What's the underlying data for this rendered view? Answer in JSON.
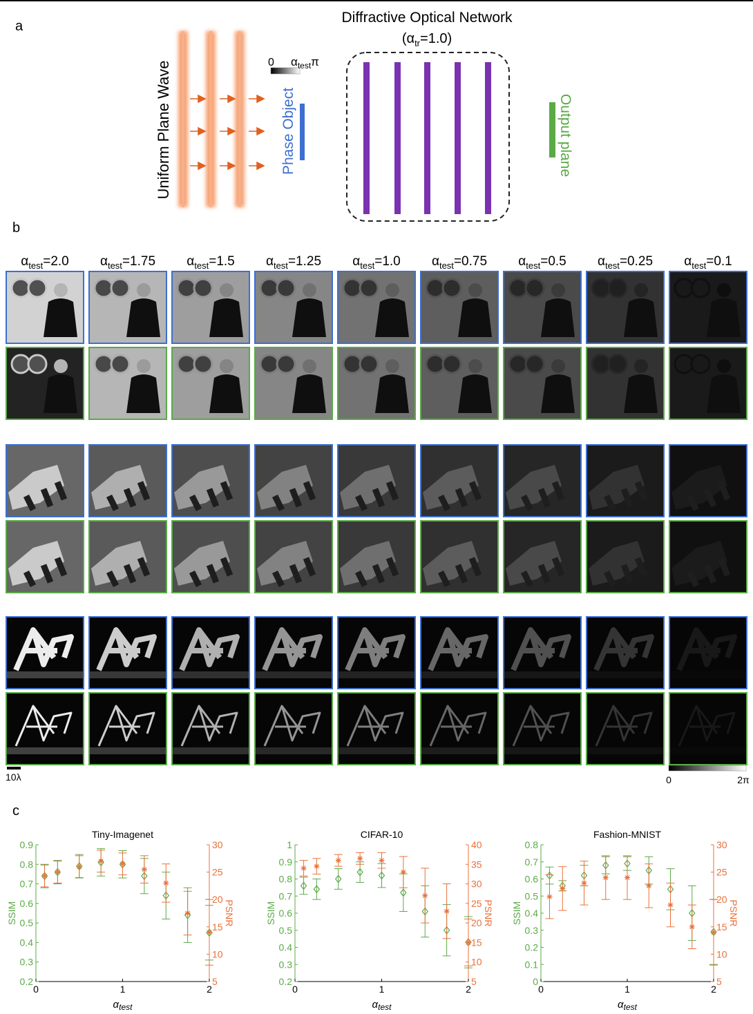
{
  "panel_a": {
    "label": "a",
    "network_title": "Diffractive Optical Network",
    "network_param": {
      "open": "(α",
      "sub": "tr",
      "rest": "=1.0)"
    },
    "wave_label": "Uniform Plane Wave",
    "object_label": "Phase Object",
    "output_label": "Output plane",
    "colorbar": {
      "low": "0",
      "high_base": "α",
      "high_sub": "test",
      "high_rest": "π"
    }
  },
  "panel_b": {
    "label": "b",
    "columns": [
      {
        "base": "α",
        "sub": "test",
        "rest": "=2.0"
      },
      {
        "base": "α",
        "sub": "test",
        "rest": "=1.75"
      },
      {
        "base": "α",
        "sub": "test",
        "rest": "=1.5"
      },
      {
        "base": "α",
        "sub": "test",
        "rest": "=1.25"
      },
      {
        "base": "α",
        "sub": "test",
        "rest": "=1.0"
      },
      {
        "base": "α",
        "sub": "test",
        "rest": "=0.75"
      },
      {
        "base": "α",
        "sub": "test",
        "rest": "=0.5"
      },
      {
        "base": "α",
        "sub": "test",
        "rest": "=0.25"
      },
      {
        "base": "α",
        "sub": "test",
        "rest": "=0.1"
      }
    ],
    "scale_bar": "10λ",
    "colorbar": {
      "low": "0",
      "high": "2π"
    }
  },
  "panel_c": {
    "label": "c"
  },
  "chart_data": [
    {
      "type": "errorbar",
      "title": "Tiny-Imagenet",
      "x_label": {
        "base": "α",
        "sub": "test"
      },
      "y_label": "SSIM",
      "y2_label": "PSNR",
      "x": [
        0.1,
        0.25,
        0.5,
        0.75,
        1,
        1.25,
        1.5,
        1.75,
        2
      ],
      "xlim": [
        0,
        2
      ],
      "xticks": [
        0,
        1,
        2
      ],
      "ylim": [
        0.2,
        0.9
      ],
      "yticks": [
        0.2,
        0.3,
        0.4,
        0.5,
        0.6,
        0.7,
        0.8,
        0.9
      ],
      "y2lim": [
        5,
        30
      ],
      "y2ticks": [
        5,
        10,
        15,
        20,
        25,
        30
      ],
      "series": [
        {
          "name": "SSIM",
          "color": "#5aaa46",
          "marker": "diamond",
          "values": [
            0.74,
            0.76,
            0.79,
            0.81,
            0.8,
            0.74,
            0.64,
            0.54,
            0.45
          ],
          "errors": [
            0.06,
            0.06,
            0.06,
            0.07,
            0.07,
            0.09,
            0.12,
            0.14,
            0.14
          ]
        },
        {
          "name": "PSNR",
          "color": "#e8703a",
          "marker": "star",
          "axis": "y2",
          "values": [
            24.3,
            25,
            26,
            27,
            26.5,
            25.5,
            23,
            17.5,
            14
          ],
          "errors": [
            2,
            2,
            2,
            2,
            2,
            2.5,
            3.5,
            4,
            6
          ]
        }
      ]
    },
    {
      "type": "errorbar",
      "title": "CIFAR-10",
      "x_label": {
        "base": "α",
        "sub": "test"
      },
      "y_label": "SSIM",
      "y2_label": "PSNR",
      "x": [
        0.1,
        0.25,
        0.5,
        0.75,
        1,
        1.25,
        1.5,
        1.75,
        2
      ],
      "xlim": [
        0,
        2
      ],
      "xticks": [
        0,
        1,
        2
      ],
      "ylim": [
        0.2,
        1
      ],
      "yticks": [
        0.2,
        0.3,
        0.4,
        0.5,
        0.6,
        0.7,
        0.8,
        0.9,
        1
      ],
      "y2lim": [
        5,
        40
      ],
      "y2ticks": [
        5,
        10,
        15,
        20,
        25,
        30,
        35,
        40
      ],
      "series": [
        {
          "name": "SSIM",
          "color": "#5aaa46",
          "marker": "diamond",
          "values": [
            0.76,
            0.74,
            0.8,
            0.84,
            0.82,
            0.72,
            0.61,
            0.5,
            0.43
          ],
          "errors": [
            0.05,
            0.06,
            0.06,
            0.06,
            0.07,
            0.11,
            0.15,
            0.15,
            0.15
          ]
        },
        {
          "name": "PSNR",
          "color": "#e8703a",
          "marker": "star",
          "axis": "y2",
          "values": [
            34,
            34.5,
            36,
            36.5,
            36,
            33,
            27,
            23,
            15
          ],
          "errors": [
            2,
            2,
            1.5,
            1.5,
            2,
            4,
            7,
            7,
            6
          ]
        }
      ]
    },
    {
      "type": "errorbar",
      "title": "Fashion-MNIST",
      "x_label": {
        "base": "α",
        "sub": "test"
      },
      "y_label": "SSIM",
      "y2_label": "PSNR",
      "x": [
        0.1,
        0.25,
        0.5,
        0.75,
        1,
        1.25,
        1.5,
        1.75,
        2
      ],
      "xlim": [
        0,
        2
      ],
      "xticks": [
        0,
        1,
        2
      ],
      "ylim": [
        0,
        0.8
      ],
      "yticks": [
        0,
        0.1,
        0.2,
        0.3,
        0.4,
        0.5,
        0.6,
        0.7,
        0.8
      ],
      "y2lim": [
        5,
        30
      ],
      "y2ticks": [
        5,
        10,
        15,
        20,
        25,
        30
      ],
      "series": [
        {
          "name": "SSIM",
          "color": "#5aaa46",
          "marker": "diamond",
          "values": [
            0.62,
            0.56,
            0.62,
            0.68,
            0.69,
            0.65,
            0.54,
            0.4,
            0.29
          ],
          "errors": [
            0.05,
            0.03,
            0.06,
            0.05,
            0.04,
            0.08,
            0.12,
            0.16,
            0.19
          ]
        },
        {
          "name": "PSNR",
          "color": "#e8703a",
          "marker": "star",
          "axis": "y2",
          "values": [
            20.5,
            22,
            23,
            24,
            24,
            22.5,
            19,
            15,
            14
          ],
          "errors": [
            4,
            4,
            4,
            4,
            4,
            4,
            4,
            4,
            6
          ]
        }
      ]
    }
  ]
}
